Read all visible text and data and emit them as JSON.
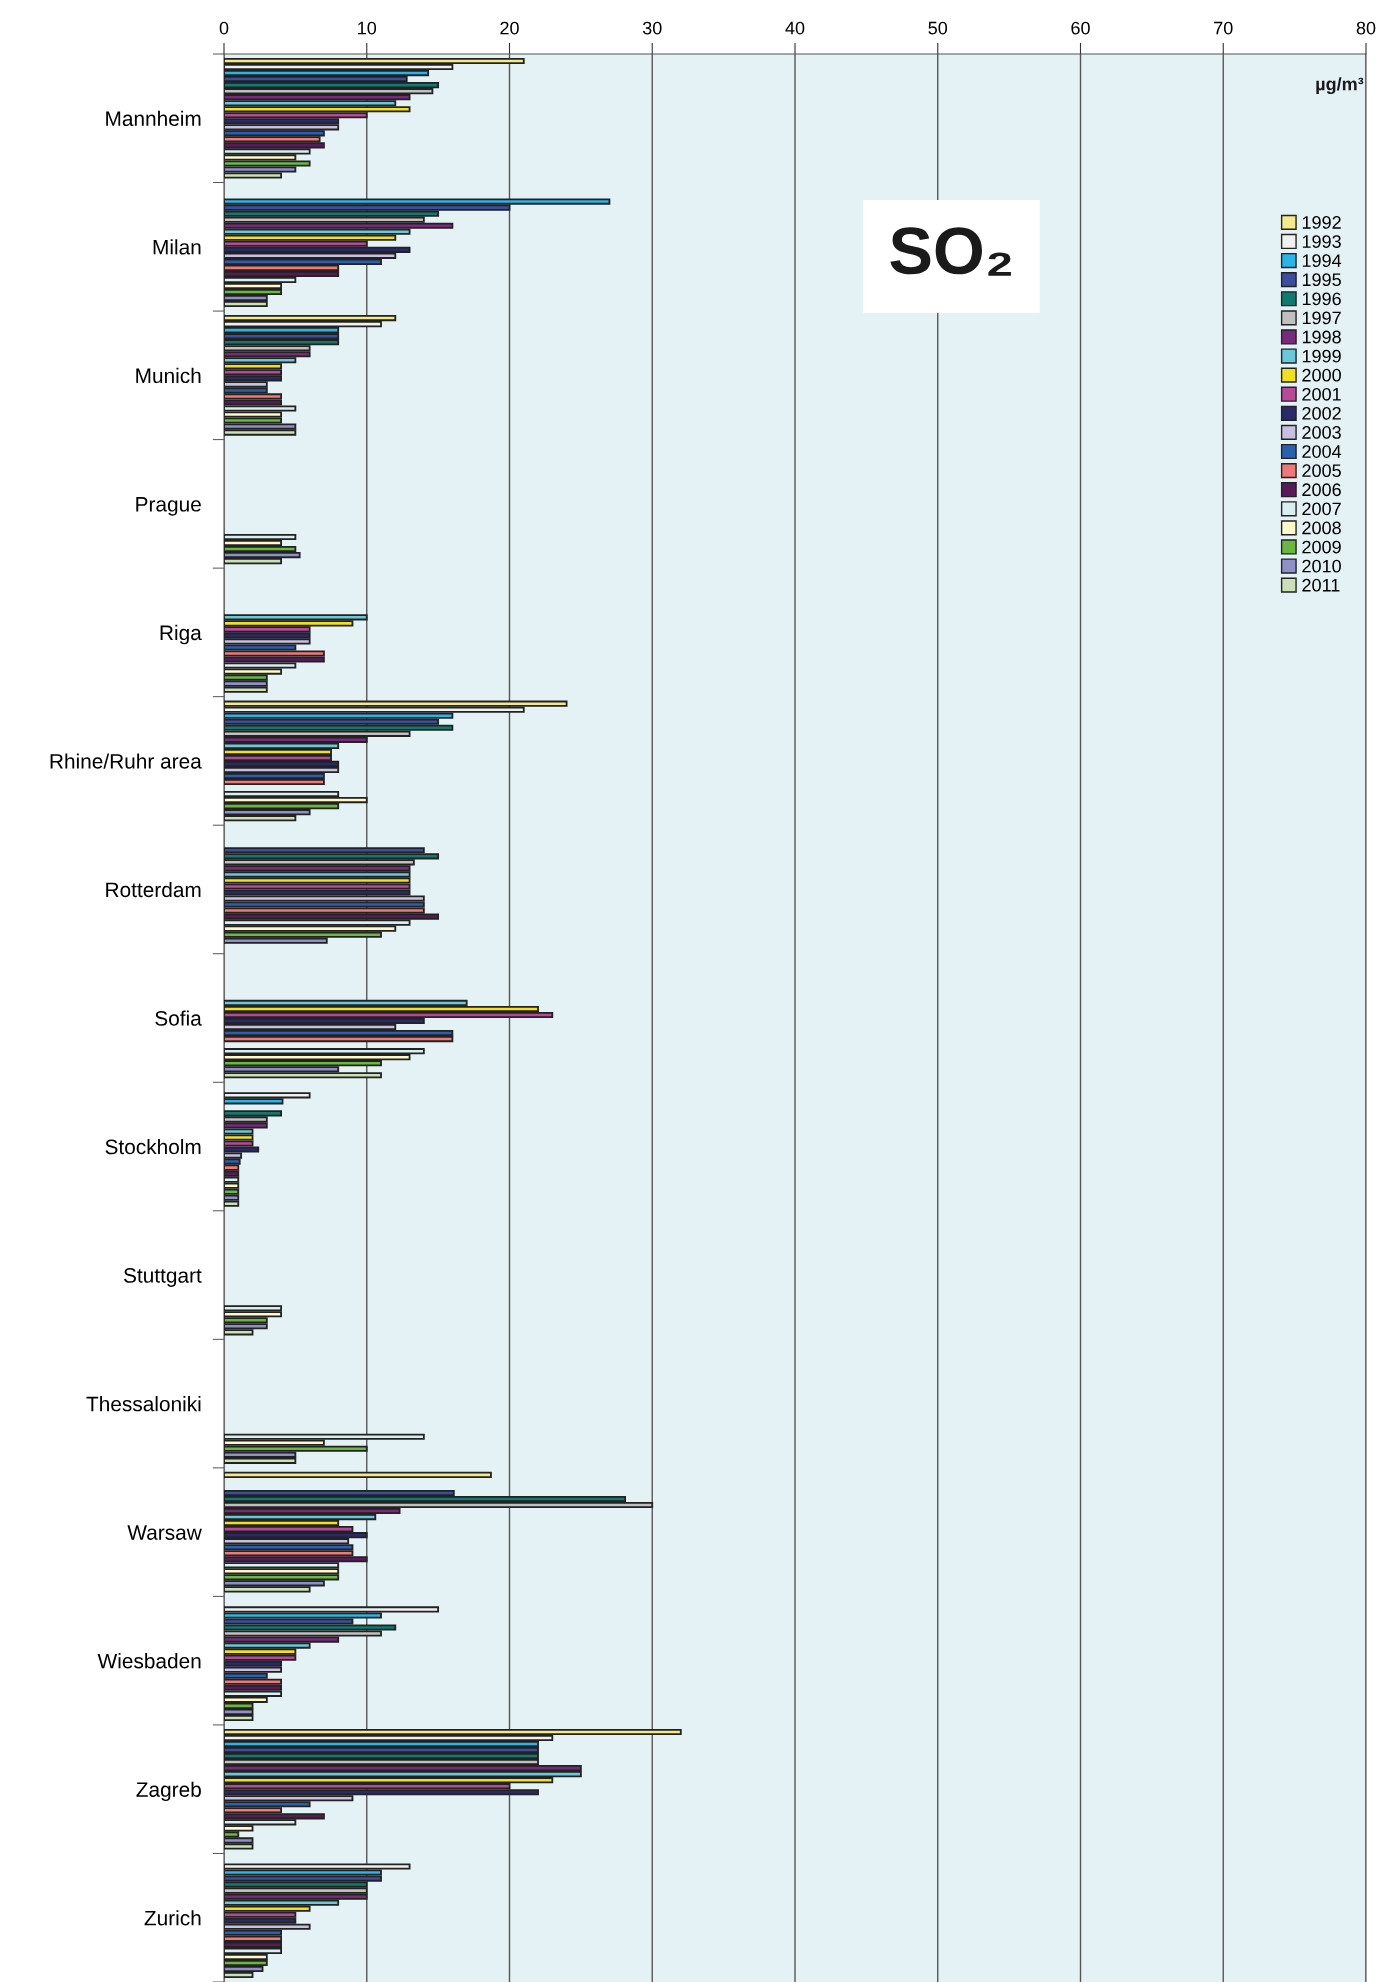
{
  "chart_data": {
    "type": "bar",
    "orientation": "horizontal",
    "title": "SO₂",
    "annotations": [
      "µg/m³"
    ],
    "categories": [
      "Mannheim",
      "Milan",
      "Munich",
      "Prague",
      "Riga",
      "Rhine/Ruhr area",
      "Rotterdam",
      "Sofia",
      "Stockholm",
      "Stuttgart",
      "Thessaloniki",
      "Warsaw",
      "Wiesbaden",
      "Zagreb",
      "Zurich"
    ],
    "xlim": [
      0,
      80
    ],
    "xticks": [
      0,
      10,
      20,
      30,
      40,
      50,
      60,
      70,
      80
    ],
    "grid": "x",
    "legend": "top right",
    "series": [
      {
        "name": "1992",
        "color": "#f5e98a",
        "values": [
          21,
          null,
          12,
          null,
          null,
          24,
          null,
          null,
          null,
          null,
          null,
          18.7,
          null,
          32,
          null
        ]
      },
      {
        "name": "1993",
        "color": "#f0f0f0",
        "values": [
          16,
          null,
          11,
          null,
          null,
          21,
          null,
          null,
          6,
          null,
          null,
          null,
          15,
          23,
          13
        ]
      },
      {
        "name": "1994",
        "color": "#29b6e6",
        "values": [
          14.3,
          27,
          8,
          null,
          null,
          16,
          null,
          null,
          4.1,
          null,
          null,
          null,
          11,
          22,
          11
        ]
      },
      {
        "name": "1995",
        "color": "#3a4fa0",
        "values": [
          12.8,
          20,
          8,
          null,
          null,
          15,
          14,
          null,
          null,
          null,
          null,
          16.1,
          9,
          22,
          11
        ]
      },
      {
        "name": "1996",
        "color": "#0f7a70",
        "values": [
          15,
          15,
          8,
          null,
          null,
          16,
          15,
          null,
          4,
          null,
          null,
          28.1,
          12,
          22,
          10
        ]
      },
      {
        "name": "1997",
        "color": "#c0c0c0",
        "values": [
          14.6,
          14,
          6,
          null,
          null,
          13,
          13.3,
          null,
          3,
          null,
          null,
          30,
          11,
          22,
          10
        ]
      },
      {
        "name": "1998",
        "color": "#7a2a7a",
        "values": [
          13,
          16,
          6,
          null,
          null,
          10,
          13,
          null,
          3,
          null,
          null,
          12.3,
          8,
          25,
          10
        ]
      },
      {
        "name": "1999",
        "color": "#6ac8d8",
        "values": [
          12,
          13,
          5,
          null,
          10,
          8,
          13,
          17,
          2,
          null,
          null,
          10.6,
          6,
          25,
          8
        ]
      },
      {
        "name": "2000",
        "color": "#f0e020",
        "values": [
          13,
          12,
          4,
          null,
          9,
          7.5,
          13,
          22,
          2,
          null,
          null,
          8,
          5,
          23,
          6
        ]
      },
      {
        "name": "2001",
        "color": "#b8489a",
        "values": [
          10,
          10,
          4,
          null,
          6,
          7.5,
          13,
          23,
          2,
          null,
          null,
          9,
          5,
          20,
          5
        ]
      },
      {
        "name": "2002",
        "color": "#2a2a6a",
        "values": [
          8,
          13,
          4,
          null,
          6,
          8,
          13,
          14,
          2.4,
          null,
          null,
          10,
          4,
          22,
          5
        ]
      },
      {
        "name": "2003",
        "color": "#c8c0e0",
        "values": [
          8,
          12,
          3,
          null,
          6,
          8,
          14,
          12,
          1.2,
          null,
          null,
          8.7,
          4,
          9,
          6
        ]
      },
      {
        "name": "2004",
        "color": "#2a60b0",
        "values": [
          7,
          11,
          3,
          null,
          5,
          7,
          14,
          16,
          1.1,
          null,
          null,
          9,
          3,
          6,
          4
        ]
      },
      {
        "name": "2005",
        "color": "#f07878",
        "values": [
          6.7,
          8,
          4,
          null,
          7,
          7,
          14,
          16,
          1,
          null,
          null,
          9,
          4,
          4,
          4
        ]
      },
      {
        "name": "2006",
        "color": "#5a1a5a",
        "values": [
          7,
          8,
          4,
          null,
          7,
          null,
          15,
          null,
          1,
          null,
          null,
          10,
          4,
          7,
          4
        ]
      },
      {
        "name": "2007",
        "color": "#d8eef0",
        "values": [
          6,
          5,
          5,
          5,
          5,
          8,
          13,
          14,
          1,
          4,
          14,
          8,
          4,
          5,
          4
        ]
      },
      {
        "name": "2008",
        "color": "#fff8c8",
        "values": [
          5,
          4,
          4,
          4,
          4,
          10,
          12,
          13,
          1,
          4,
          7,
          8,
          3,
          2,
          3
        ]
      },
      {
        "name": "2009",
        "color": "#6ab840",
        "values": [
          6,
          4,
          4,
          5,
          3,
          8,
          11,
          11,
          1,
          3,
          10,
          8,
          2,
          1,
          3
        ]
      },
      {
        "name": "2010",
        "color": "#9090c8",
        "values": [
          5,
          3,
          5,
          5.3,
          3,
          6,
          7.2,
          8,
          1,
          3,
          5,
          7,
          2,
          2,
          2.7
        ]
      },
      {
        "name": "2011",
        "color": "#cce0b8",
        "values": [
          4,
          3,
          5,
          4,
          3,
          5,
          null,
          11,
          1,
          2,
          5,
          6,
          2,
          2,
          2
        ]
      }
    ]
  }
}
